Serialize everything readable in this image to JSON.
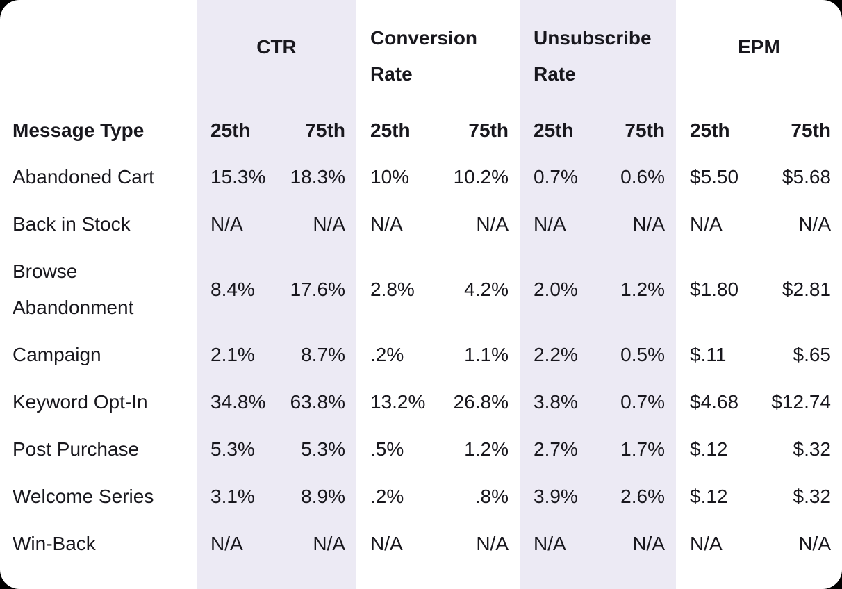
{
  "colors": {
    "card_background": "#ffffff",
    "stripe": "#eceaf4",
    "text": "#18171d",
    "page_background": "#000000"
  },
  "table": {
    "groups": [
      {
        "label": "CTR",
        "striped": true
      },
      {
        "label": "Conversion Rate",
        "striped": false
      },
      {
        "label": "Unsubscribe Rate",
        "striped": true
      },
      {
        "label": "EPM",
        "striped": false
      }
    ],
    "header": {
      "label": "Message Type",
      "p25": "25th",
      "p75": "75th"
    },
    "rows": [
      {
        "label": "Abandoned Cart",
        "values": [
          "15.3%",
          "18.3%",
          "10%",
          "10.2%",
          "0.7%",
          "0.6%",
          "$5.50",
          "$5.68"
        ]
      },
      {
        "label": "Back in Stock",
        "values": [
          "N/A",
          "N/A",
          "N/A",
          "N/A",
          "N/A",
          "N/A",
          "N/A",
          "N/A"
        ]
      },
      {
        "label": "Browse Abandonment",
        "values": [
          "8.4%",
          "17.6%",
          "2.8%",
          "4.2%",
          "2.0%",
          "1.2%",
          "$1.80",
          "$2.81"
        ]
      },
      {
        "label": "Campaign",
        "values": [
          "2.1%",
          "8.7%",
          ".2%",
          "1.1%",
          "2.2%",
          "0.5%",
          "$.11",
          "$.65"
        ]
      },
      {
        "label": "Keyword Opt-In",
        "values": [
          "34.8%",
          "63.8%",
          "13.2%",
          "26.8%",
          "3.8%",
          "0.7%",
          "$4.68",
          "$12.74"
        ]
      },
      {
        "label": "Post Purchase",
        "values": [
          "5.3%",
          "5.3%",
          ".5%",
          "1.2%",
          "2.7%",
          "1.7%",
          "$.12",
          "$.32"
        ]
      },
      {
        "label": "Welcome Series",
        "values": [
          "3.1%",
          "8.9%",
          ".2%",
          ".8%",
          "3.9%",
          "2.6%",
          "$.12",
          "$.32"
        ]
      },
      {
        "label": "Win-Back",
        "values": [
          "N/A",
          "N/A",
          "N/A",
          "N/A",
          "N/A",
          "N/A",
          "N/A",
          "N/A"
        ]
      }
    ]
  },
  "chart_data": {
    "type": "table",
    "title": "",
    "column_groups": [
      "CTR",
      "Conversion Rate",
      "Unsubscribe Rate",
      "EPM"
    ],
    "columns": [
      "Message Type",
      "CTR 25th",
      "CTR 75th",
      "Conversion Rate 25th",
      "Conversion Rate 75th",
      "Unsubscribe Rate 25th",
      "Unsubscribe Rate 75th",
      "EPM 25th",
      "EPM 75th"
    ],
    "rows": [
      [
        "Abandoned Cart",
        "15.3%",
        "18.3%",
        "10%",
        "10.2%",
        "0.7%",
        "0.6%",
        "$5.50",
        "$5.68"
      ],
      [
        "Back in Stock",
        "N/A",
        "N/A",
        "N/A",
        "N/A",
        "N/A",
        "N/A",
        "N/A",
        "N/A"
      ],
      [
        "Browse Abandonment",
        "8.4%",
        "17.6%",
        "2.8%",
        "4.2%",
        "2.0%",
        "1.2%",
        "$1.80",
        "$2.81"
      ],
      [
        "Campaign",
        "2.1%",
        "8.7%",
        ".2%",
        "1.1%",
        "2.2%",
        "0.5%",
        "$.11",
        "$.65"
      ],
      [
        "Keyword Opt-In",
        "34.8%",
        "63.8%",
        "13.2%",
        "26.8%",
        "3.8%",
        "0.7%",
        "$4.68",
        "$12.74"
      ],
      [
        "Post Purchase",
        "5.3%",
        "5.3%",
        ".5%",
        "1.2%",
        "2.7%",
        "1.7%",
        "$.12",
        "$.32"
      ],
      [
        "Welcome Series",
        "3.1%",
        "8.9%",
        ".2%",
        ".8%",
        "3.9%",
        "2.6%",
        "$.12",
        "$.32"
      ],
      [
        "Win-Back",
        "N/A",
        "N/A",
        "N/A",
        "N/A",
        "N/A",
        "N/A",
        "N/A",
        "N/A"
      ]
    ]
  }
}
